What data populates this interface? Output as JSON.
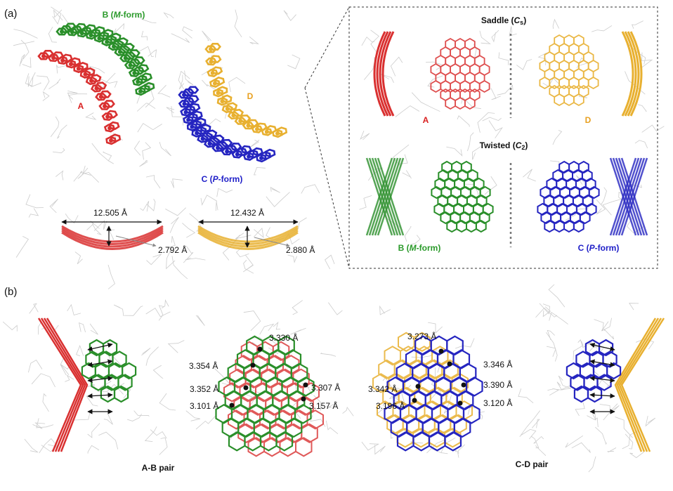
{
  "panel_a": {
    "label": "(a)",
    "molecules": {
      "a": "A",
      "b": [
        "B (",
        "M",
        "-form)"
      ],
      "c": [
        "C (",
        "P",
        "-form)"
      ],
      "d": "D"
    },
    "measurements": [
      {
        "width": "12.505 Å",
        "depth": "2.792 Å"
      },
      {
        "width": "12.432 Å",
        "depth": "2.880 Å"
      }
    ],
    "inset": {
      "saddle": {
        "title": [
          "Saddle (",
          "C",
          "s",
          ")"
        ],
        "left": "A",
        "right": "D"
      },
      "twisted": {
        "title": [
          "Twisted (",
          "C",
          "2",
          ")"
        ],
        "left": [
          "B (",
          "M",
          "-form)"
        ],
        "right": [
          "C (",
          "P",
          "-form)"
        ]
      }
    }
  },
  "panel_b": {
    "label": "(b)",
    "ab_pair": {
      "title": "A-B pair",
      "distances": [
        "3.330 Å",
        "3.354 Å",
        "3.352 Å",
        "3.101 Å",
        "3.307 Å",
        "3.157 Å"
      ]
    },
    "cd_pair": {
      "title": "C-D pair",
      "distances": [
        "3.273 Å",
        "3.346 Å",
        "3.342 Å",
        "3.390 Å",
        "3.196 Å",
        "3.120 Å"
      ]
    }
  }
}
